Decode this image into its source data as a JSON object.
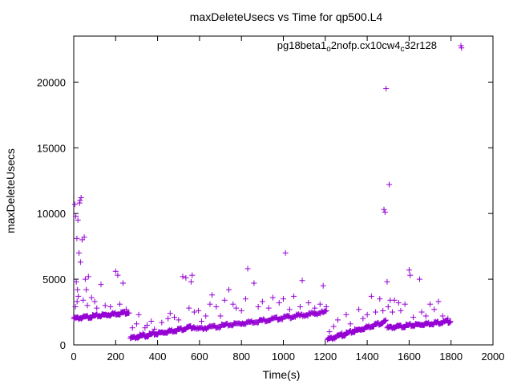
{
  "chart_data": {
    "type": "scatter",
    "title": "maxDeleteUsecs vs Time for qp500.L4",
    "xlabel": "Time(s)",
    "ylabel": "maxDeleteUsecs",
    "xlim": [
      0,
      2000
    ],
    "ylim": [
      0,
      23500
    ],
    "xticks": [
      "0",
      "200",
      "400",
      "600",
      "800",
      "1000",
      "1200",
      "1400",
      "1600",
      "1800",
      "2000"
    ],
    "yticks": [
      "0",
      "5000",
      "10000",
      "15000",
      "20000"
    ],
    "grid": false,
    "legend_position": "top-right",
    "marker": "+",
    "color": "#9400d3",
    "series": [
      {
        "name": "pg18beta1_o2nofp.cx10cw4_c32r128",
        "legend_parts": [
          {
            "text": "pg18beta1",
            "sub": false
          },
          {
            "text": "o",
            "sub": true
          },
          {
            "text": "2nofp.cx10cw4",
            "sub": false
          },
          {
            "text": "c",
            "sub": true
          },
          {
            "text": "32r128",
            "sub": false
          }
        ],
        "segments": [
          {
            "x_start": 0,
            "x_end": 265,
            "y_start": 2000,
            "y_end": 2500,
            "step": 3
          },
          {
            "x_start": 270,
            "x_end": 580,
            "y_start": 500,
            "y_end": 1400,
            "step": 3
          },
          {
            "x_start": 585,
            "x_end": 1205,
            "y_start": 1200,
            "y_end": 2500,
            "step": 4
          },
          {
            "x_start": 1210,
            "x_end": 1490,
            "y_start": 400,
            "y_end": 1800,
            "step": 3
          },
          {
            "x_start": 1495,
            "x_end": 1800,
            "y_start": 1300,
            "y_end": 1800,
            "step": 3
          }
        ],
        "points": [
          [
            5,
            10700
          ],
          [
            10,
            9800
          ],
          [
            15,
            8100
          ],
          [
            20,
            9500
          ],
          [
            25,
            7000
          ],
          [
            28,
            10800
          ],
          [
            30,
            11000
          ],
          [
            35,
            11200
          ],
          [
            32,
            6300
          ],
          [
            40,
            8000
          ],
          [
            12,
            4800
          ],
          [
            18,
            4200
          ],
          [
            22,
            3700
          ],
          [
            45,
            3400
          ],
          [
            50,
            8200
          ],
          [
            55,
            5000
          ],
          [
            60,
            4200
          ],
          [
            70,
            5200
          ],
          [
            85,
            3600
          ],
          [
            100,
            3300
          ],
          [
            110,
            2800
          ],
          [
            130,
            4600
          ],
          [
            150,
            3000
          ],
          [
            175,
            2900
          ],
          [
            200,
            5600
          ],
          [
            210,
            5300
          ],
          [
            220,
            3100
          ],
          [
            235,
            4700
          ],
          [
            250,
            2700
          ],
          [
            65,
            3000
          ],
          [
            8,
            2900
          ],
          [
            16,
            3300
          ],
          [
            280,
            1300
          ],
          [
            300,
            1600
          ],
          [
            310,
            2300
          ],
          [
            330,
            900
          ],
          [
            350,
            1500
          ],
          [
            370,
            1800
          ],
          [
            385,
            1200
          ],
          [
            420,
            1700
          ],
          [
            450,
            2000
          ],
          [
            480,
            2100
          ],
          [
            500,
            1900
          ],
          [
            520,
            5200
          ],
          [
            535,
            5100
          ],
          [
            550,
            2800
          ],
          [
            560,
            4800
          ],
          [
            565,
            5300
          ],
          [
            575,
            2500
          ],
          [
            315,
            800
          ],
          [
            340,
            1300
          ],
          [
            460,
            2400
          ],
          [
            595,
            2600
          ],
          [
            610,
            1800
          ],
          [
            630,
            2200
          ],
          [
            650,
            3100
          ],
          [
            660,
            3800
          ],
          [
            680,
            2900
          ],
          [
            700,
            2200
          ],
          [
            720,
            3400
          ],
          [
            740,
            4200
          ],
          [
            760,
            3100
          ],
          [
            775,
            2800
          ],
          [
            800,
            2600
          ],
          [
            820,
            3500
          ],
          [
            830,
            5800
          ],
          [
            860,
            4700
          ],
          [
            880,
            2900
          ],
          [
            900,
            3300
          ],
          [
            930,
            2800
          ],
          [
            950,
            3600
          ],
          [
            980,
            3200
          ],
          [
            1000,
            3500
          ],
          [
            1010,
            7000
          ],
          [
            1030,
            2700
          ],
          [
            1050,
            3700
          ],
          [
            1080,
            2900
          ],
          [
            1090,
            4900
          ],
          [
            1120,
            3200
          ],
          [
            1150,
            2800
          ],
          [
            1175,
            3100
          ],
          [
            1190,
            4500
          ],
          [
            1205,
            2900
          ],
          [
            1220,
            1000
          ],
          [
            1240,
            1400
          ],
          [
            1260,
            1900
          ],
          [
            1280,
            900
          ],
          [
            1300,
            2300
          ],
          [
            1320,
            1600
          ],
          [
            1340,
            1200
          ],
          [
            1360,
            2700
          ],
          [
            1380,
            2000
          ],
          [
            1400,
            2300
          ],
          [
            1420,
            3700
          ],
          [
            1440,
            2500
          ],
          [
            1460,
            3500
          ],
          [
            1475,
            2600
          ],
          [
            1480,
            10300
          ],
          [
            1485,
            10100
          ],
          [
            1490,
            19500
          ],
          [
            1495,
            4800
          ],
          [
            1500,
            2900
          ],
          [
            1505,
            12200
          ],
          [
            1510,
            3400
          ],
          [
            1520,
            2500
          ],
          [
            1530,
            3400
          ],
          [
            1550,
            3200
          ],
          [
            1560,
            2600
          ],
          [
            1580,
            3100
          ],
          [
            1600,
            5700
          ],
          [
            1605,
            5300
          ],
          [
            1620,
            2100
          ],
          [
            1650,
            5000
          ],
          [
            1660,
            2500
          ],
          [
            1680,
            2200
          ],
          [
            1700,
            3100
          ],
          [
            1720,
            2700
          ],
          [
            1740,
            3300
          ],
          [
            1760,
            2200
          ],
          [
            1785,
            2000
          ],
          [
            1850,
            22600
          ]
        ]
      }
    ]
  }
}
